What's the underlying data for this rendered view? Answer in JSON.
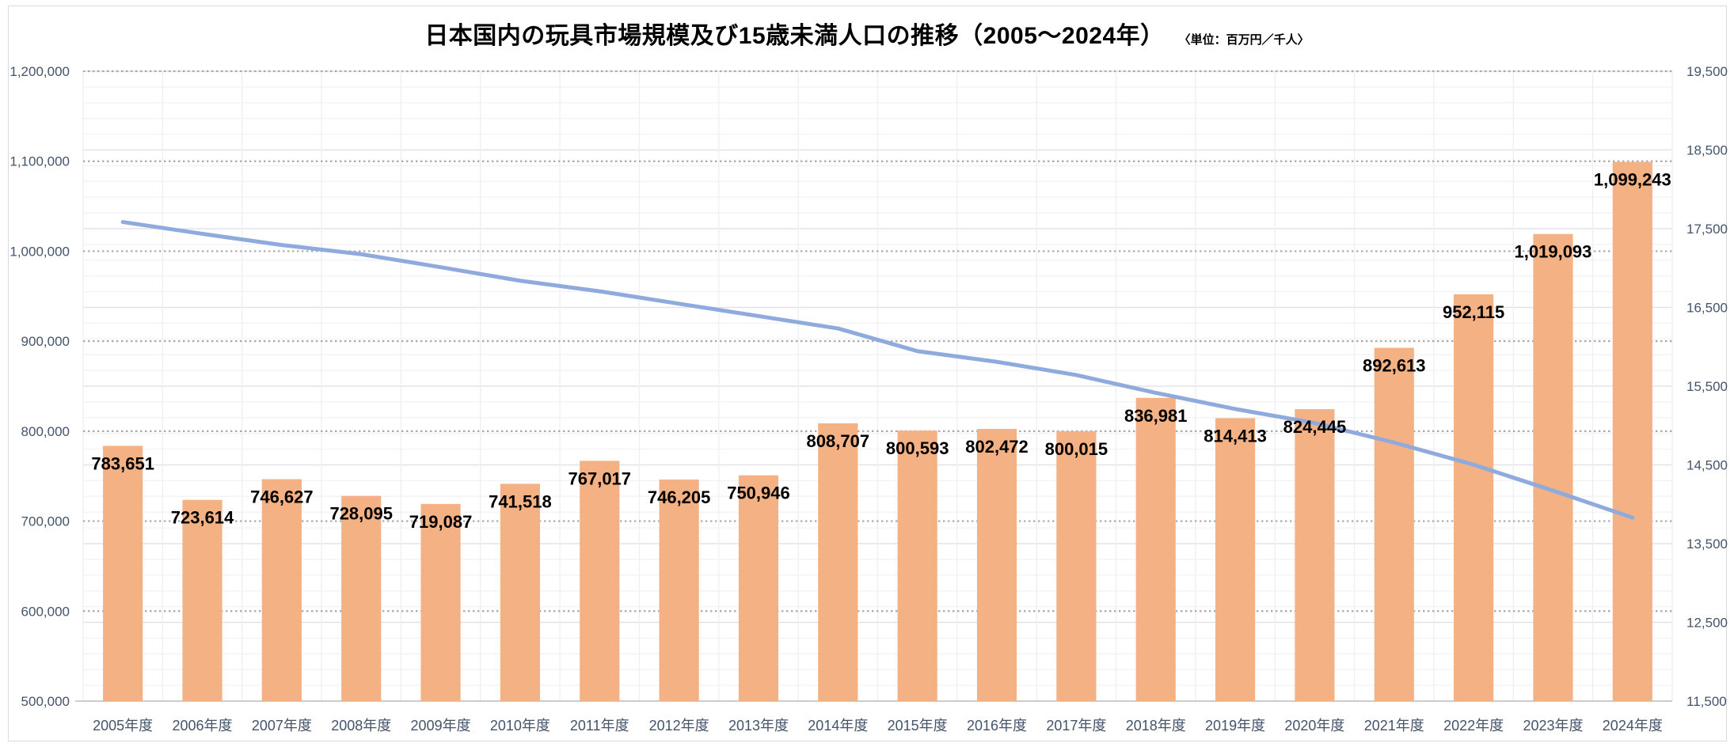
{
  "header": {
    "title": "日本国内の玩具市場規模及び15歳未満人口の推移（2005～2024年）",
    "unit_note": "〈単位：百万円／千人〉"
  },
  "chart_data": {
    "type": "bar",
    "subtype": "combo-bar-line-dual-axis",
    "title": "日本国内の玩具市場規模及び15歳未満人口の推移（2005～2024年）",
    "unit_note": "〈単位：百万円／千人〉",
    "categories": [
      "2005年度",
      "2006年度",
      "2007年度",
      "2008年度",
      "2009年度",
      "2010年度",
      "2011年度",
      "2012年度",
      "2013年度",
      "2014年度",
      "2015年度",
      "2016年度",
      "2017年度",
      "2018年度",
      "2019年度",
      "2020年度",
      "2021年度",
      "2022年度",
      "2023年度",
      "2024年度"
    ],
    "series": [
      {
        "name": "玩具市場規模（百万円）",
        "type": "bar",
        "axis": "left",
        "color": "#F4B183",
        "data_labels": true,
        "values": [
          783651,
          723614,
          746627,
          728095,
          719087,
          741518,
          767017,
          746205,
          750946,
          808707,
          800593,
          802472,
          800015,
          836981,
          814413,
          824445,
          892613,
          952115,
          1019093,
          1099243
        ]
      },
      {
        "name": "15歳未満人口（千人）",
        "type": "line",
        "axis": "right",
        "color": "#8FAADC",
        "data_labels": false,
        "values_estimated_from_line": true,
        "values": [
          17585,
          17435,
          17293,
          17176,
          17011,
          16839,
          16705,
          16547,
          16390,
          16233,
          15945,
          15809,
          15641,
          15415,
          15210,
          15032,
          14784,
          14503,
          14173,
          13830
        ]
      }
    ],
    "left_axis": {
      "min": 500000,
      "max": 1200000,
      "step": 100000,
      "tick_labels": [
        "500,000",
        "600,000",
        "700,000",
        "800,000",
        "900,000",
        "1,000,000",
        "1,100,000",
        "1,200,000"
      ]
    },
    "right_axis": {
      "min": 11500,
      "max": 19500,
      "step": 1000,
      "tick_labels": [
        "11,500",
        "12,500",
        "13,500",
        "14,500",
        "15,500",
        "16,500",
        "17,500",
        "18,500",
        "19,500"
      ]
    },
    "layout": {
      "legend": "none",
      "grid": "dotted gray lines at left-axis majors; light solid lines at right-axis majors and 1/5 minors; faint vertical lines at category boundaries",
      "axis_label_color": "#44546A",
      "bar_label_color": "#000000"
    }
  }
}
